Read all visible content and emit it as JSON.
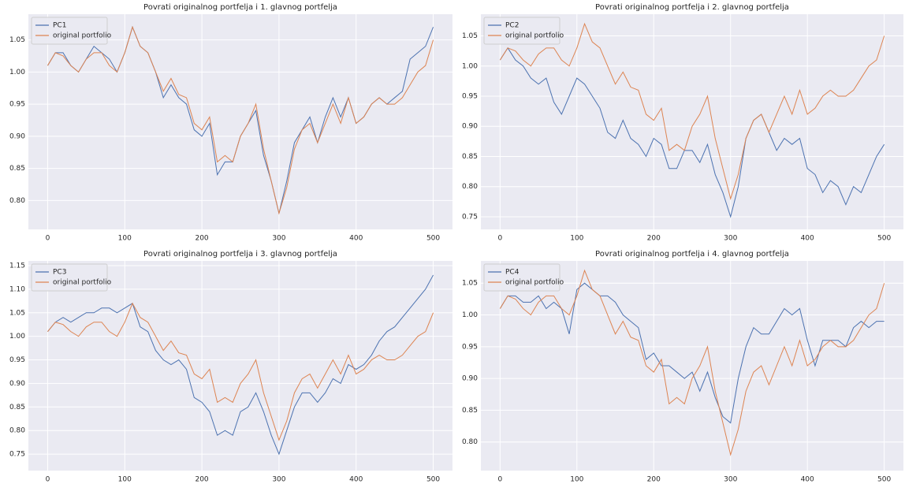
{
  "chart_data": [
    {
      "type": "line",
      "title": "Povrati originalnog portfelja i 1. glavnog portfelja",
      "x": [
        0,
        10,
        20,
        30,
        40,
        50,
        60,
        70,
        80,
        90,
        100,
        110,
        120,
        130,
        140,
        150,
        160,
        170,
        180,
        190,
        200,
        210,
        220,
        230,
        240,
        250,
        260,
        270,
        280,
        290,
        300,
        310,
        320,
        330,
        340,
        350,
        360,
        370,
        380,
        390,
        400,
        410,
        420,
        430,
        440,
        450,
        460,
        470,
        480,
        490,
        500
      ],
      "series": [
        {
          "name": "PC1",
          "color": "#4c72b0",
          "values": [
            1.01,
            1.03,
            1.03,
            1.01,
            1.0,
            1.02,
            1.04,
            1.03,
            1.02,
            1.0,
            1.03,
            1.07,
            1.04,
            1.03,
            1.0,
            0.96,
            0.98,
            0.96,
            0.95,
            0.91,
            0.9,
            0.92,
            0.84,
            0.86,
            0.86,
            0.9,
            0.92,
            0.94,
            0.87,
            0.83,
            0.78,
            0.83,
            0.89,
            0.91,
            0.93,
            0.89,
            0.93,
            0.96,
            0.93,
            0.96,
            0.92,
            0.93,
            0.95,
            0.96,
            0.95,
            0.96,
            0.97,
            1.02,
            1.03,
            1.04,
            1.07
          ]
        },
        {
          "name": "original portfolio",
          "color": "#dd8452",
          "values": [
            1.01,
            1.03,
            1.025,
            1.01,
            1.0,
            1.02,
            1.03,
            1.03,
            1.01,
            1.0,
            1.03,
            1.07,
            1.04,
            1.03,
            1.0,
            0.97,
            0.99,
            0.965,
            0.96,
            0.92,
            0.91,
            0.93,
            0.86,
            0.87,
            0.86,
            0.9,
            0.92,
            0.95,
            0.88,
            0.83,
            0.78,
            0.82,
            0.88,
            0.91,
            0.92,
            0.89,
            0.92,
            0.95,
            0.92,
            0.96,
            0.92,
            0.93,
            0.95,
            0.96,
            0.95,
            0.95,
            0.96,
            0.98,
            1.0,
            1.01,
            1.05
          ]
        }
      ],
      "xlim": [
        -25,
        525
      ],
      "ylim": [
        0.755,
        1.09
      ],
      "xticks": [
        0,
        100,
        200,
        300,
        400,
        500
      ],
      "yticks": [
        {
          "value": 0.8,
          "label": "0.80"
        },
        0.85,
        {
          "value": 0.9,
          "label": "0.90"
        },
        0.95,
        {
          "value": 1.0,
          "label": "1.00"
        },
        1.05
      ],
      "grid": true,
      "legend": "upper left"
    },
    {
      "type": "line",
      "title": "Povrati originalnog portfelja i 2. glavnog portfelja",
      "x": [
        0,
        10,
        20,
        30,
        40,
        50,
        60,
        70,
        80,
        90,
        100,
        110,
        120,
        130,
        140,
        150,
        160,
        170,
        180,
        190,
        200,
        210,
        220,
        230,
        240,
        250,
        260,
        270,
        280,
        290,
        300,
        310,
        320,
        330,
        340,
        350,
        360,
        370,
        380,
        390,
        400,
        410,
        420,
        430,
        440,
        450,
        460,
        470,
        480,
        490,
        500
      ],
      "series": [
        {
          "name": "PC2",
          "color": "#4c72b0",
          "values": [
            1.01,
            1.03,
            1.01,
            1.0,
            0.98,
            0.97,
            0.98,
            0.94,
            0.92,
            0.95,
            0.98,
            0.97,
            0.95,
            0.93,
            0.89,
            0.88,
            0.91,
            0.88,
            0.87,
            0.85,
            0.88,
            0.87,
            0.83,
            0.83,
            0.86,
            0.86,
            0.84,
            0.87,
            0.82,
            0.79,
            0.75,
            0.8,
            0.88,
            0.91,
            0.92,
            0.89,
            0.86,
            0.88,
            0.87,
            0.88,
            0.83,
            0.82,
            0.79,
            0.81,
            0.8,
            0.77,
            0.8,
            0.79,
            0.82,
            0.85,
            0.87
          ]
        },
        {
          "name": "original portfolio",
          "color": "#dd8452",
          "values": [
            1.01,
            1.03,
            1.025,
            1.01,
            1.0,
            1.02,
            1.03,
            1.03,
            1.01,
            1.0,
            1.03,
            1.07,
            1.04,
            1.03,
            1.0,
            0.97,
            0.99,
            0.965,
            0.96,
            0.92,
            0.91,
            0.93,
            0.86,
            0.87,
            0.86,
            0.9,
            0.92,
            0.95,
            0.88,
            0.83,
            0.78,
            0.82,
            0.88,
            0.91,
            0.92,
            0.89,
            0.92,
            0.95,
            0.92,
            0.96,
            0.92,
            0.93,
            0.95,
            0.96,
            0.95,
            0.95,
            0.96,
            0.98,
            1.0,
            1.01,
            1.05
          ]
        }
      ],
      "xlim": [
        -25,
        525
      ],
      "ylim": [
        0.729,
        1.086
      ],
      "xticks": [
        0,
        100,
        200,
        300,
        400,
        500
      ],
      "yticks": [
        0.75,
        {
          "value": 0.8,
          "label": "0.80"
        },
        0.85,
        {
          "value": 0.9,
          "label": "0.90"
        },
        0.95,
        {
          "value": 1.0,
          "label": "1.00"
        },
        1.05
      ],
      "grid": true,
      "legend": "upper left"
    },
    {
      "type": "line",
      "title": "Povrati originalnog portfelja i 3. glavnog portfelja",
      "x": [
        0,
        10,
        20,
        30,
        40,
        50,
        60,
        70,
        80,
        90,
        100,
        110,
        120,
        130,
        140,
        150,
        160,
        170,
        180,
        190,
        200,
        210,
        220,
        230,
        240,
        250,
        260,
        270,
        280,
        290,
        300,
        310,
        320,
        330,
        340,
        350,
        360,
        370,
        380,
        390,
        400,
        410,
        420,
        430,
        440,
        450,
        460,
        470,
        480,
        490,
        500
      ],
      "series": [
        {
          "name": "PC3",
          "color": "#4c72b0",
          "values": [
            1.01,
            1.03,
            1.04,
            1.03,
            1.04,
            1.05,
            1.05,
            1.06,
            1.06,
            1.05,
            1.06,
            1.07,
            1.02,
            1.01,
            0.97,
            0.95,
            0.94,
            0.95,
            0.93,
            0.87,
            0.86,
            0.84,
            0.79,
            0.8,
            0.79,
            0.84,
            0.85,
            0.88,
            0.84,
            0.79,
            0.75,
            0.8,
            0.85,
            0.88,
            0.88,
            0.86,
            0.88,
            0.91,
            0.9,
            0.94,
            0.93,
            0.94,
            0.96,
            0.99,
            1.01,
            1.02,
            1.04,
            1.06,
            1.08,
            1.1,
            1.13
          ]
        },
        {
          "name": "original portfolio",
          "color": "#dd8452",
          "values": [
            1.01,
            1.03,
            1.025,
            1.01,
            1.0,
            1.02,
            1.03,
            1.03,
            1.01,
            1.0,
            1.03,
            1.07,
            1.04,
            1.03,
            1.0,
            0.97,
            0.99,
            0.965,
            0.96,
            0.92,
            0.91,
            0.93,
            0.86,
            0.87,
            0.86,
            0.9,
            0.92,
            0.95,
            0.88,
            0.83,
            0.78,
            0.82,
            0.88,
            0.91,
            0.92,
            0.89,
            0.92,
            0.95,
            0.92,
            0.96,
            0.92,
            0.93,
            0.95,
            0.96,
            0.95,
            0.95,
            0.96,
            0.98,
            1.0,
            1.01,
            1.05
          ]
        }
      ],
      "xlim": [
        -25,
        525
      ],
      "ylim": [
        0.715,
        1.16
      ],
      "xticks": [
        0,
        100,
        200,
        300,
        400,
        500
      ],
      "yticks": [
        0.75,
        {
          "value": 0.8,
          "label": "0.80"
        },
        0.85,
        {
          "value": 0.9,
          "label": "0.90"
        },
        0.95,
        {
          "value": 1.0,
          "label": "1.00"
        },
        1.05,
        {
          "value": 1.1,
          "label": "1.10"
        },
        1.15
      ],
      "grid": true,
      "legend": "upper left"
    },
    {
      "type": "line",
      "title": "Povrati originalnog portfelja i 4. glavnog portfelja",
      "x": [
        0,
        10,
        20,
        30,
        40,
        50,
        60,
        70,
        80,
        90,
        100,
        110,
        120,
        130,
        140,
        150,
        160,
        170,
        180,
        190,
        200,
        210,
        220,
        230,
        240,
        250,
        260,
        270,
        280,
        290,
        300,
        310,
        320,
        330,
        340,
        350,
        360,
        370,
        380,
        390,
        400,
        410,
        420,
        430,
        440,
        450,
        460,
        470,
        480,
        490,
        500
      ],
      "series": [
        {
          "name": "PC4",
          "color": "#4c72b0",
          "values": [
            1.01,
            1.03,
            1.03,
            1.02,
            1.02,
            1.03,
            1.01,
            1.02,
            1.01,
            0.97,
            1.04,
            1.05,
            1.04,
            1.03,
            1.03,
            1.02,
            1.0,
            0.99,
            0.98,
            0.93,
            0.94,
            0.92,
            0.92,
            0.91,
            0.9,
            0.91,
            0.88,
            0.91,
            0.87,
            0.84,
            0.83,
            0.9,
            0.95,
            0.98,
            0.97,
            0.97,
            0.99,
            1.01,
            1.0,
            1.01,
            0.96,
            0.92,
            0.96,
            0.96,
            0.96,
            0.95,
            0.98,
            0.99,
            0.98,
            0.99,
            0.99
          ]
        },
        {
          "name": "original portfolio",
          "color": "#dd8452",
          "values": [
            1.01,
            1.03,
            1.025,
            1.01,
            1.0,
            1.02,
            1.03,
            1.03,
            1.01,
            1.0,
            1.03,
            1.07,
            1.04,
            1.03,
            1.0,
            0.97,
            0.99,
            0.965,
            0.96,
            0.92,
            0.91,
            0.93,
            0.86,
            0.87,
            0.86,
            0.9,
            0.92,
            0.95,
            0.88,
            0.83,
            0.78,
            0.82,
            0.88,
            0.91,
            0.92,
            0.89,
            0.92,
            0.95,
            0.92,
            0.96,
            0.92,
            0.93,
            0.95,
            0.96,
            0.95,
            0.95,
            0.96,
            0.98,
            1.0,
            1.01,
            1.05
          ]
        }
      ],
      "xlim": [
        -25,
        525
      ],
      "ylim": [
        0.755,
        1.085
      ],
      "xticks": [
        0,
        100,
        200,
        300,
        400,
        500
      ],
      "yticks": [
        {
          "value": 0.8,
          "label": "0.80"
        },
        0.85,
        {
          "value": 0.9,
          "label": "0.90"
        },
        0.95,
        {
          "value": 1.0,
          "label": "1.00"
        },
        1.05
      ],
      "grid": true,
      "legend": "upper left"
    }
  ]
}
